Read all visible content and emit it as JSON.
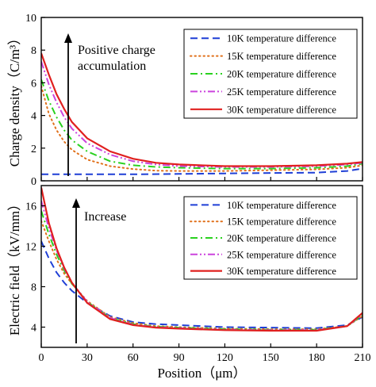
{
  "chart_data": [
    {
      "type": "line",
      "xlabel": "",
      "ylabel": "Charge density（C/m³）",
      "xlim": [
        0,
        210
      ],
      "ylim": [
        0,
        10
      ],
      "xticks": [
        0,
        30,
        60,
        90,
        120,
        150,
        180,
        210
      ],
      "yticks": [
        0,
        2,
        4,
        6,
        8,
        10
      ],
      "legend_position": "top-right",
      "annotation": [
        "Positive charge",
        "accumulation"
      ],
      "series": [
        {
          "name": "10K temperature difference",
          "color": "#1f3fd6",
          "dash": "dashed",
          "x": [
            0,
            30,
            60,
            90,
            120,
            150,
            180,
            200,
            210
          ],
          "y": [
            0.4,
            0.4,
            0.4,
            0.42,
            0.45,
            0.48,
            0.5,
            0.6,
            0.75
          ]
        },
        {
          "name": "15K temperature difference",
          "color": "#e0701a",
          "dash": "dotted",
          "x": [
            0,
            5,
            10,
            15,
            20,
            30,
            45,
            60,
            75,
            90,
            120,
            150,
            180,
            200,
            210
          ],
          "y": [
            5.8,
            4.1,
            3.1,
            2.4,
            1.9,
            1.3,
            0.9,
            0.72,
            0.62,
            0.6,
            0.6,
            0.65,
            0.7,
            0.8,
            0.95
          ]
        },
        {
          "name": "20K temperature difference",
          "color": "#2ad11f",
          "dash": "dashdot",
          "x": [
            0,
            5,
            10,
            15,
            20,
            30,
            45,
            60,
            75,
            90,
            120,
            150,
            180,
            200,
            210
          ],
          "y": [
            6.2,
            4.9,
            3.9,
            3.1,
            2.5,
            1.8,
            1.2,
            0.95,
            0.85,
            0.8,
            0.75,
            0.75,
            0.8,
            0.9,
            1.05
          ]
        },
        {
          "name": "25K temperature difference",
          "color": "#cc44dd",
          "dash": "dashdotdot",
          "x": [
            0,
            5,
            10,
            15,
            20,
            30,
            45,
            60,
            75,
            90,
            120,
            150,
            180,
            200,
            210
          ],
          "y": [
            7.3,
            5.9,
            4.8,
            3.9,
            3.2,
            2.3,
            1.6,
            1.2,
            1.0,
            0.9,
            0.85,
            0.85,
            0.9,
            1.0,
            1.1
          ]
        },
        {
          "name": "30K temperature difference",
          "color": "#e0201f",
          "dash": "solid",
          "x": [
            0,
            5,
            10,
            15,
            20,
            30,
            45,
            60,
            75,
            90,
            120,
            150,
            180,
            200,
            210
          ],
          "y": [
            7.8,
            6.5,
            5.3,
            4.4,
            3.6,
            2.6,
            1.8,
            1.35,
            1.1,
            1.0,
            0.9,
            0.9,
            0.95,
            1.05,
            1.15
          ]
        }
      ]
    },
    {
      "type": "line",
      "xlabel": "Position（μm）",
      "ylabel": "Electric field（kV/mm）",
      "xlim": [
        0,
        210
      ],
      "ylim": [
        2,
        18
      ],
      "xticks": [
        0,
        30,
        60,
        90,
        120,
        150,
        180,
        210
      ],
      "yticks": [
        4,
        8,
        12,
        16
      ],
      "legend_position": "top-right",
      "annotation": [
        "Increase"
      ],
      "series": [
        {
          "name": "10K temperature difference",
          "color": "#1f3fd6",
          "dash": "dashed",
          "x": [
            0,
            5,
            10,
            15,
            20,
            30,
            45,
            60,
            75,
            90,
            120,
            150,
            180,
            200,
            210
          ],
          "y": [
            12.5,
            10.8,
            9.4,
            8.4,
            7.6,
            6.4,
            5.1,
            4.5,
            4.3,
            4.2,
            4.0,
            3.95,
            3.9,
            4.2,
            5.0
          ]
        },
        {
          "name": "15K temperature difference",
          "color": "#e0701a",
          "dash": "dotted",
          "x": [
            0,
            5,
            10,
            15,
            20,
            30,
            45,
            60,
            75,
            90,
            120,
            150,
            180,
            200,
            210
          ],
          "y": [
            14.5,
            12.5,
            10.7,
            9.3,
            8.3,
            6.6,
            5.0,
            4.4,
            4.1,
            4.0,
            3.85,
            3.8,
            3.8,
            4.1,
            5.1
          ]
        },
        {
          "name": "20K temperature difference",
          "color": "#2ad11f",
          "dash": "dashdot",
          "x": [
            0,
            5,
            10,
            15,
            20,
            30,
            45,
            60,
            75,
            90,
            120,
            150,
            180,
            200,
            210
          ],
          "y": [
            15.5,
            13.2,
            11.2,
            9.6,
            8.3,
            6.5,
            4.9,
            4.3,
            4.05,
            3.95,
            3.8,
            3.75,
            3.75,
            4.1,
            5.2
          ]
        },
        {
          "name": "25K temperature difference",
          "color": "#cc44dd",
          "dash": "dashdotdot",
          "x": [
            0,
            5,
            10,
            15,
            20,
            30,
            45,
            60,
            75,
            90,
            120,
            150,
            180,
            200,
            210
          ],
          "y": [
            16.5,
            13.8,
            11.6,
            9.8,
            8.4,
            6.5,
            4.9,
            4.25,
            4.0,
            3.9,
            3.75,
            3.7,
            3.7,
            4.1,
            5.3
          ]
        },
        {
          "name": "30K temperature difference",
          "color": "#e0201f",
          "dash": "solid",
          "x": [
            0,
            5,
            10,
            15,
            20,
            30,
            45,
            60,
            75,
            90,
            120,
            150,
            180,
            200,
            210
          ],
          "y": [
            17.8,
            14.3,
            11.8,
            9.9,
            8.4,
            6.4,
            4.8,
            4.2,
            3.95,
            3.85,
            3.7,
            3.65,
            3.65,
            4.1,
            5.4
          ]
        }
      ]
    }
  ]
}
